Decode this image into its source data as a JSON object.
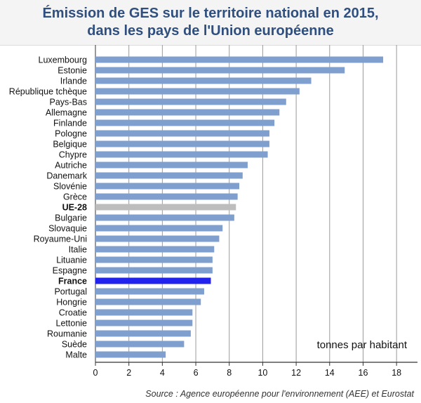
{
  "chart_data": {
    "type": "bar",
    "orientation": "horizontal",
    "title_lines": [
      "Émission de GES sur le territoire national en 2015,",
      "dans les pays de l'Union européenne"
    ],
    "unit_label": "tonnes par habitant",
    "source": "Source : Agence européenne pour l'environnement (AEE) et Eurostat",
    "categories": [
      "Luxembourg",
      "Estonie",
      "Irlande",
      "République tchèque",
      "Pays-Bas",
      "Allemagne",
      "Finlande",
      "Pologne",
      "Belgique",
      "Chypre",
      "Autriche",
      "Danemark",
      "Slovénie",
      "Grèce",
      "UE-28",
      "Bulgarie",
      "Slovaquie",
      "Royaume-Uni",
      "Italie",
      "Lituanie",
      "Espagne",
      "France",
      "Portugal",
      "Hongrie",
      "Croatie",
      "Lettonie",
      "Roumanie",
      "Suède",
      "Malte"
    ],
    "values": [
      17.2,
      14.9,
      12.9,
      12.2,
      11.4,
      11.0,
      10.7,
      10.4,
      10.4,
      10.3,
      9.1,
      8.8,
      8.6,
      8.5,
      8.4,
      8.3,
      7.6,
      7.4,
      7.1,
      7.0,
      7.0,
      6.9,
      6.5,
      6.3,
      5.8,
      5.8,
      5.7,
      5.3,
      4.2
    ],
    "highlight": {
      "UE-28": "#bdbdbd",
      "France": "#2222ee"
    },
    "bold_categories": [
      "UE-28",
      "France"
    ],
    "bar_color": "#7f9fcf",
    "xticks": [
      0,
      2,
      4,
      6,
      8,
      10,
      12,
      14,
      16,
      18
    ],
    "xlim": [
      0,
      19
    ],
    "grid": true
  }
}
